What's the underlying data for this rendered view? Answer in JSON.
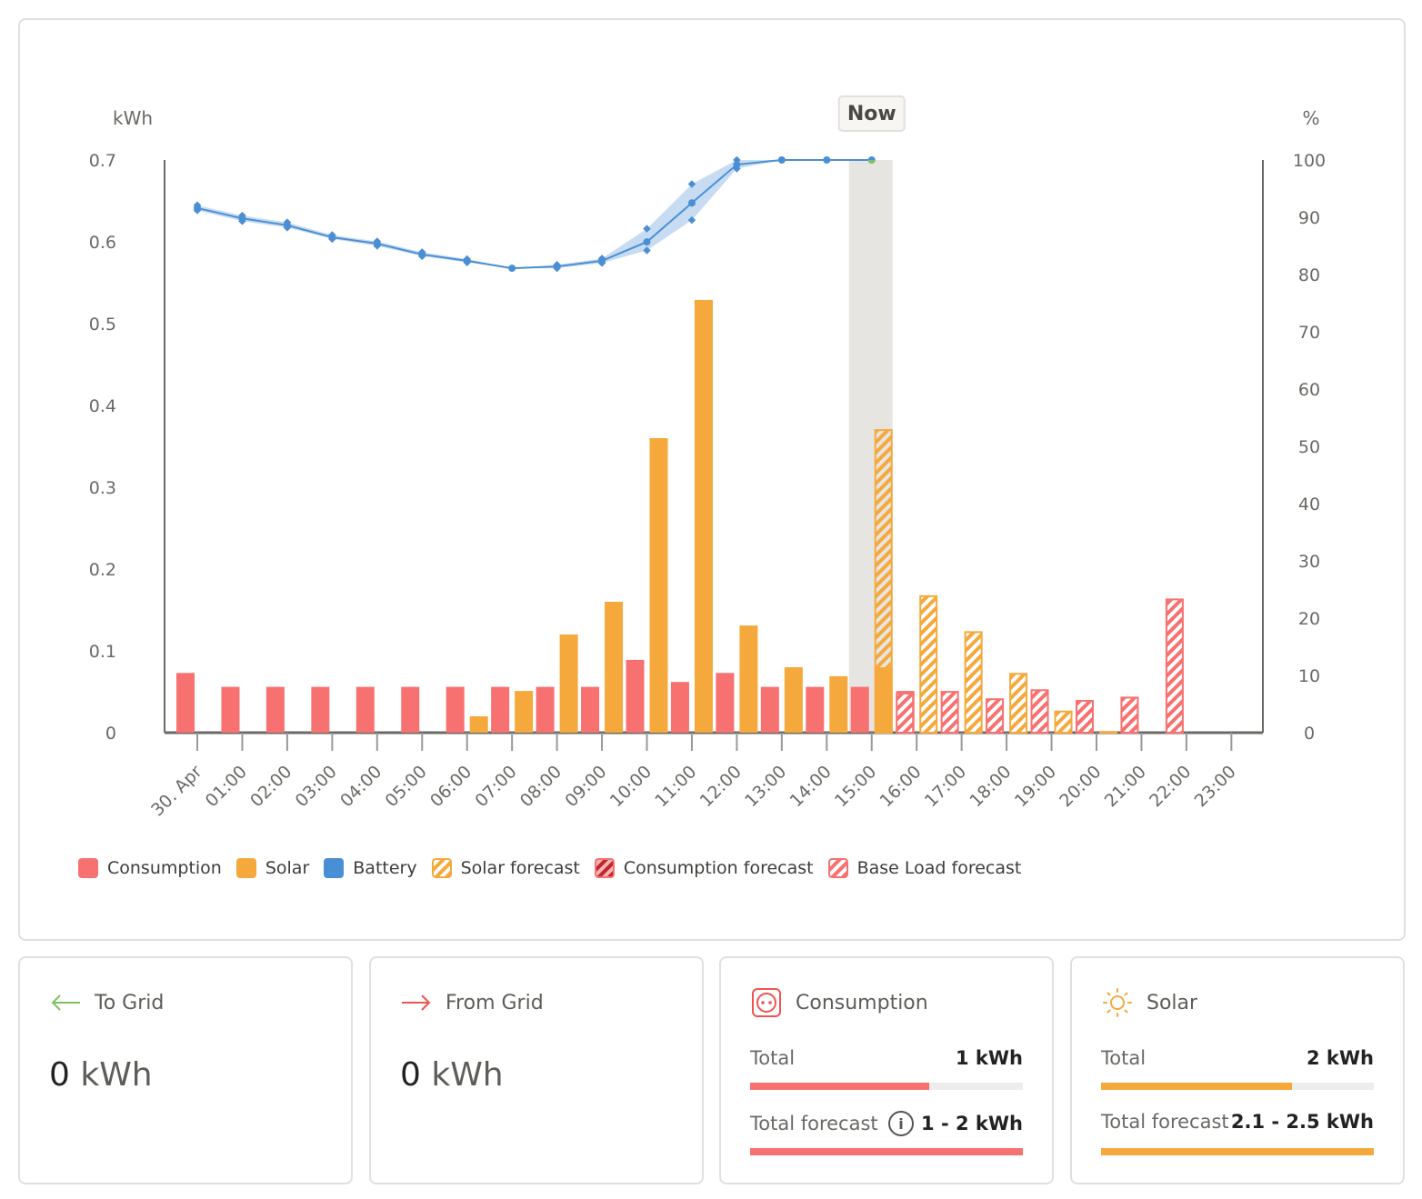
{
  "chart_data": {
    "type": "bar",
    "title": "",
    "left_axis": {
      "label": "kWh",
      "ticks": [
        "0",
        "0.1",
        "0.2",
        "0.3",
        "0.4",
        "0.5",
        "0.6",
        "0.7"
      ],
      "range": [
        0,
        0.7
      ]
    },
    "right_axis": {
      "label": "%",
      "ticks": [
        "0",
        "10",
        "20",
        "30",
        "40",
        "50",
        "60",
        "70",
        "80",
        "90",
        "100"
      ],
      "range": [
        0,
        100
      ]
    },
    "categories": [
      "30. Apr",
      "01:00",
      "02:00",
      "03:00",
      "04:00",
      "05:00",
      "06:00",
      "07:00",
      "08:00",
      "09:00",
      "10:00",
      "11:00",
      "12:00",
      "13:00",
      "14:00",
      "15:00",
      "16:00",
      "17:00",
      "18:00",
      "19:00",
      "20:00",
      "21:00",
      "22:00",
      "23:00"
    ],
    "now_marker": {
      "label": "Now",
      "category": "15:00"
    },
    "series": [
      {
        "name": "Consumption",
        "kind": "bar",
        "color": "#f87171",
        "values": [
          0.073,
          0.056,
          0.056,
          0.056,
          0.056,
          0.056,
          0.056,
          0.056,
          0.056,
          0.056,
          0.089,
          0.062,
          0.073,
          0.056,
          0.056,
          0.056,
          null,
          null,
          null,
          null,
          null,
          null,
          null,
          null
        ]
      },
      {
        "name": "Solar",
        "kind": "bar",
        "color": "#f5a93c",
        "values": [
          null,
          null,
          null,
          null,
          null,
          null,
          0.02,
          0.051,
          0.12,
          0.16,
          0.36,
          0.529,
          0.131,
          0.08,
          0.069,
          0.08,
          null,
          null,
          null,
          null,
          null,
          null,
          null,
          null
        ]
      },
      {
        "name": "Battery",
        "kind": "line",
        "axis": "right",
        "color": "#4a8fd4",
        "values": [
          91.6,
          89.8,
          88.6,
          86.5,
          85.4,
          83.5,
          82.4,
          81.1,
          81.4,
          82.4,
          85.7,
          92.5,
          99.2,
          100,
          100,
          100,
          null,
          null,
          null,
          null,
          null,
          null,
          null,
          null
        ],
        "range_low": [
          91.2,
          89.3,
          88.2,
          86.2,
          85.0,
          83.2,
          82.1,
          81.1,
          81.1,
          82.0,
          84.2,
          89.5,
          98.5,
          100,
          100,
          100
        ],
        "range_high": [
          92.1,
          90.3,
          89.1,
          86.9,
          85.8,
          83.9,
          82.7,
          81.1,
          81.7,
          82.8,
          88.0,
          95.8,
          100,
          100,
          100,
          100
        ]
      },
      {
        "name": "Solar forecast",
        "kind": "bar-hatched",
        "color": "#f5a93c",
        "values": [
          null,
          null,
          null,
          null,
          null,
          null,
          null,
          null,
          null,
          null,
          null,
          null,
          null,
          null,
          null,
          0.371,
          0.168,
          0.124,
          0.073,
          0.027,
          0.002,
          null,
          null,
          null
        ]
      },
      {
        "name": "Consumption forecast",
        "kind": "bar-hatched",
        "color": "#c0262d",
        "values": [
          null,
          null,
          null,
          null,
          null,
          null,
          null,
          null,
          null,
          null,
          null,
          null,
          null,
          null,
          null,
          null,
          null,
          null,
          null,
          null,
          null,
          null,
          null,
          null
        ]
      },
      {
        "name": "Base Load forecast",
        "kind": "bar-hatched",
        "color": "#f87171",
        "values": [
          null,
          null,
          null,
          null,
          null,
          null,
          null,
          null,
          null,
          null,
          null,
          null,
          null,
          null,
          null,
          0.051,
          0.049,
          0.051,
          0.042,
          0.053,
          0.04,
          0.044,
          0.164,
          null
        ]
      }
    ],
    "legend": [
      "Consumption",
      "Solar",
      "Battery",
      "Solar forecast",
      "Consumption forecast",
      "Base Load forecast"
    ],
    "legend_position": "bottom-left"
  },
  "legend_labels": {
    "consumption": "Consumption",
    "solar": "Solar",
    "battery": "Battery",
    "solar_forecast": "Solar forecast",
    "consumption_forecast": "Consumption forecast",
    "base_load_forecast": "Base Load forecast"
  },
  "colors": {
    "consumption": "#f87171",
    "solar": "#f5a93c",
    "battery": "#4a8fd4",
    "to_grid_arrow": "#7cc264",
    "from_grid_arrow": "#ef5350"
  },
  "summary": {
    "to_grid": {
      "title": "To Grid",
      "value": "0",
      "unit": "kWh",
      "icon": "arrow-left-icon"
    },
    "from_grid": {
      "title": "From Grid",
      "value": "0",
      "unit": "kWh",
      "icon": "arrow-right-icon"
    },
    "consumption": {
      "title": "Consumption",
      "icon": "power-socket-icon",
      "total_label": "Total",
      "total_value": "1 kWh",
      "total_progress": 0.655,
      "forecast_label": "Total forecast",
      "forecast_value": "1 - 2 kWh",
      "forecast_progress": 1.0
    },
    "solar": {
      "title": "Solar",
      "icon": "sun-icon",
      "total_label": "Total",
      "total_value": "2 kWh",
      "total_progress": 0.7,
      "forecast_label": "Total forecast",
      "forecast_value": "2.1 - 2.5 kWh",
      "forecast_progress": 1.0
    }
  }
}
